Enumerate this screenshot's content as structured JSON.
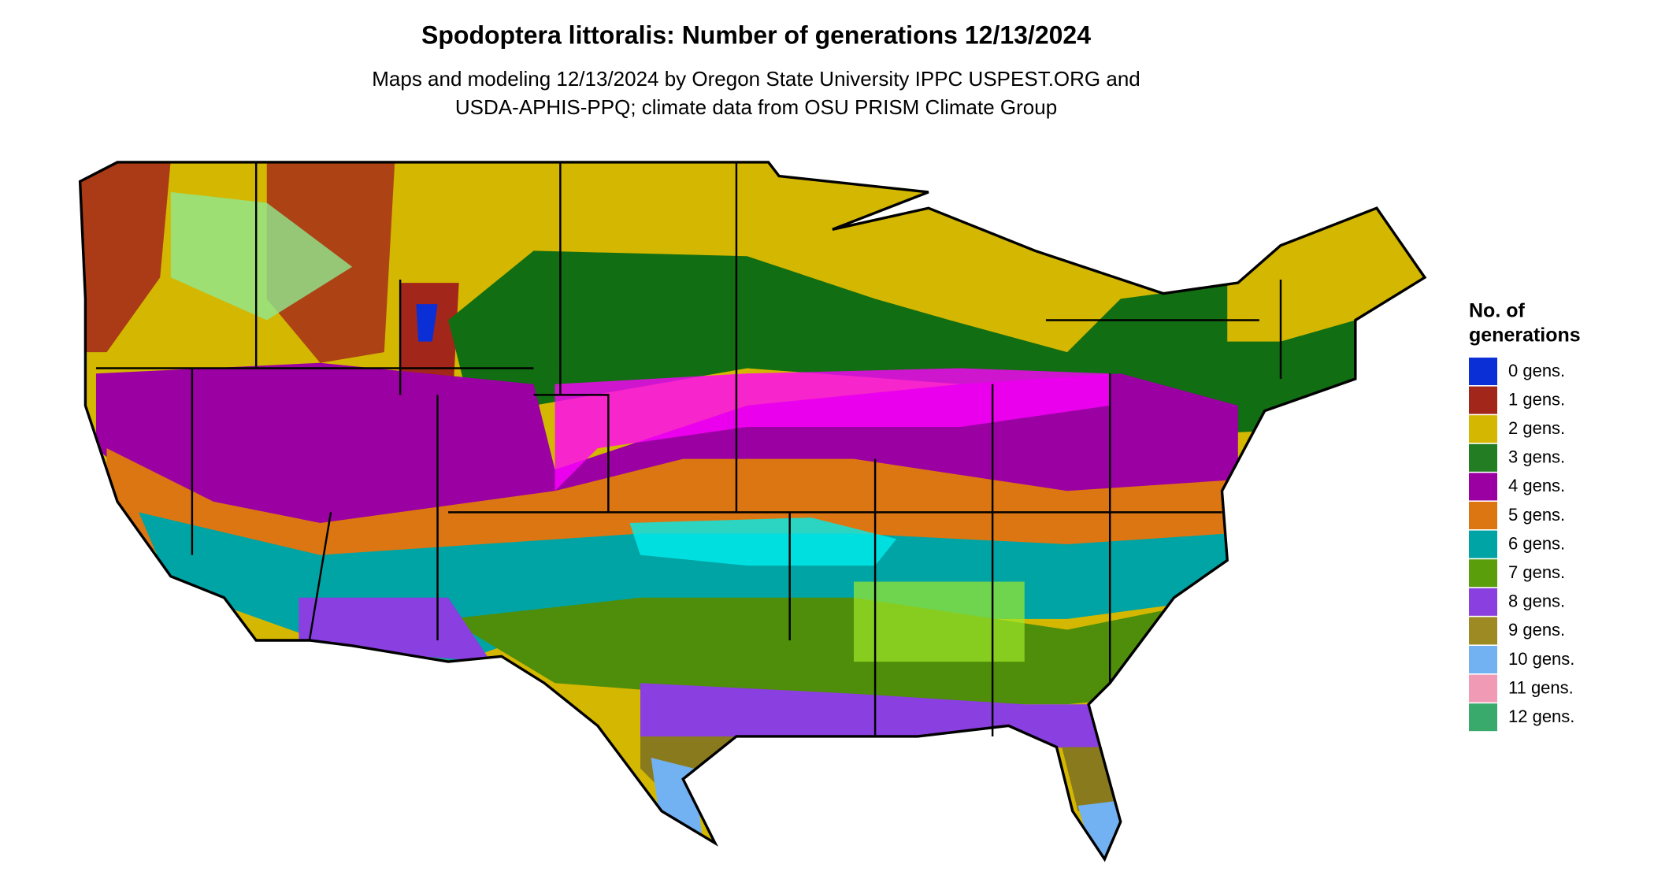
{
  "title": "Spodoptera littoralis: Number of generations 12/13/2024",
  "subtitle": [
    "Maps and modeling 12/13/2024 by Oregon State University IPPC USPEST.ORG and",
    "USDA-APHIS-PPQ; climate data from OSU PRISM Climate Group"
  ],
  "legend": {
    "title": [
      "No. of",
      "generations"
    ],
    "items": [
      {
        "label": "0 gens.",
        "color": "#0a2fd6"
      },
      {
        "label": "1 gens.",
        "color": "#a3261a"
      },
      {
        "label": "2 gens.",
        "color": "#d4b700"
      },
      {
        "label": "3 gens.",
        "color": "#237d23"
      },
      {
        "label": "4 gens.",
        "color": "#9b00a3"
      },
      {
        "label": "5 gens.",
        "color": "#dc7612"
      },
      {
        "label": "6 gens.",
        "color": "#00a4a4"
      },
      {
        "label": "7 gens.",
        "color": "#5a9e0c"
      },
      {
        "label": "8 gens.",
        "color": "#8a3fe0"
      },
      {
        "label": "9 gens.",
        "color": "#9e8a22"
      },
      {
        "label": "10 gens.",
        "color": "#72b2f2"
      },
      {
        "label": "11 gens.",
        "color": "#f09ab6"
      },
      {
        "label": "12 gens.",
        "color": "#3aaa6c"
      }
    ]
  }
}
